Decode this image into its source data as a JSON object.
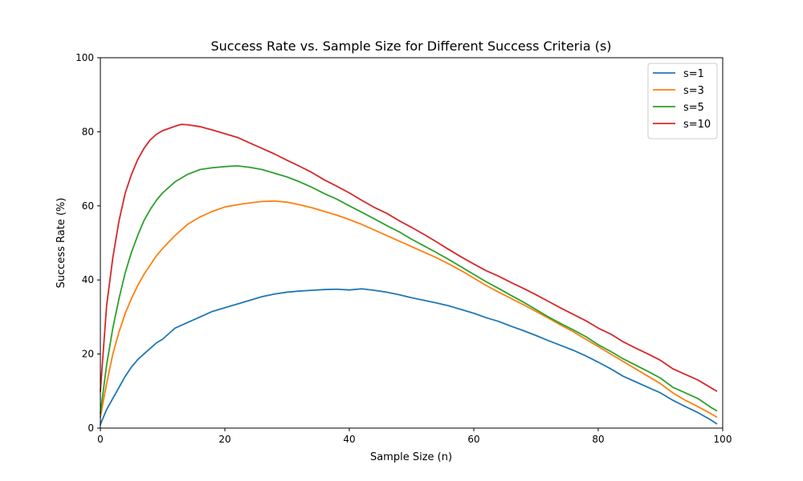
{
  "chart_data": {
    "type": "line",
    "title": "Success Rate vs. Sample Size for Different Success Criteria (s)",
    "xlabel": "Sample Size (n)",
    "ylabel": "Success Rate (%)",
    "xlim": [
      0,
      100
    ],
    "ylim": [
      0,
      100
    ],
    "xticks": [
      0,
      20,
      40,
      60,
      80,
      100
    ],
    "yticks": [
      0,
      20,
      40,
      60,
      80,
      100
    ],
    "grid": false,
    "legend_position": "top-right",
    "series": [
      {
        "name": "s=1",
        "color": "#1f77b4",
        "points": [
          [
            0,
            1
          ],
          [
            1,
            5
          ],
          [
            2,
            8
          ],
          [
            3,
            11
          ],
          [
            4,
            14
          ],
          [
            5,
            16.5
          ],
          [
            6,
            18.5
          ],
          [
            7,
            20
          ],
          [
            8,
            21.5
          ],
          [
            9,
            23
          ],
          [
            10,
            24
          ],
          [
            12,
            27
          ],
          [
            14,
            28.5
          ],
          [
            16,
            30
          ],
          [
            18,
            31.5
          ],
          [
            20,
            32.5
          ],
          [
            22,
            33.5
          ],
          [
            24,
            34.5
          ],
          [
            26,
            35.5
          ],
          [
            28,
            36.2
          ],
          [
            30,
            36.7
          ],
          [
            32,
            37
          ],
          [
            34,
            37.2
          ],
          [
            36,
            37.4
          ],
          [
            38,
            37.5
          ],
          [
            40,
            37.3
          ],
          [
            42,
            37.6
          ],
          [
            44,
            37.2
          ],
          [
            46,
            36.7
          ],
          [
            48,
            36
          ],
          [
            50,
            35.2
          ],
          [
            52,
            34.5
          ],
          [
            54,
            33.8
          ],
          [
            56,
            33
          ],
          [
            58,
            32
          ],
          [
            60,
            31
          ],
          [
            62,
            29.8
          ],
          [
            64,
            28.8
          ],
          [
            66,
            27.5
          ],
          [
            68,
            26.3
          ],
          [
            70,
            25
          ],
          [
            72,
            23.6
          ],
          [
            74,
            22.3
          ],
          [
            76,
            21
          ],
          [
            78,
            19.5
          ],
          [
            80,
            17.8
          ],
          [
            82,
            16
          ],
          [
            84,
            14
          ],
          [
            86,
            12.5
          ],
          [
            88,
            11
          ],
          [
            90,
            9.5
          ],
          [
            92,
            7.5
          ],
          [
            94,
            5.8
          ],
          [
            96,
            4.2
          ],
          [
            98,
            2.3
          ],
          [
            99,
            1.2
          ]
        ]
      },
      {
        "name": "s=3",
        "color": "#ff7f0e",
        "points": [
          [
            0,
            3
          ],
          [
            1,
            12
          ],
          [
            2,
            20
          ],
          [
            3,
            26
          ],
          [
            4,
            31
          ],
          [
            5,
            35
          ],
          [
            6,
            38.5
          ],
          [
            7,
            41.5
          ],
          [
            8,
            44
          ],
          [
            9,
            46.5
          ],
          [
            10,
            48.5
          ],
          [
            12,
            52
          ],
          [
            14,
            55
          ],
          [
            16,
            57
          ],
          [
            18,
            58.5
          ],
          [
            20,
            59.7
          ],
          [
            22,
            60.3
          ],
          [
            24,
            60.8
          ],
          [
            26,
            61.2
          ],
          [
            28,
            61.3
          ],
          [
            30,
            61
          ],
          [
            32,
            60.3
          ],
          [
            34,
            59.5
          ],
          [
            36,
            58.5
          ],
          [
            38,
            57.5
          ],
          [
            40,
            56.3
          ],
          [
            42,
            55
          ],
          [
            44,
            53.5
          ],
          [
            46,
            52
          ],
          [
            48,
            50.5
          ],
          [
            50,
            49
          ],
          [
            52,
            47.5
          ],
          [
            54,
            46
          ],
          [
            56,
            44.3
          ],
          [
            58,
            42.5
          ],
          [
            60,
            40.5
          ],
          [
            62,
            38.5
          ],
          [
            64,
            36.7
          ],
          [
            66,
            35
          ],
          [
            68,
            33.3
          ],
          [
            70,
            31.5
          ],
          [
            72,
            29.7
          ],
          [
            74,
            27.8
          ],
          [
            76,
            26
          ],
          [
            78,
            24
          ],
          [
            80,
            22
          ],
          [
            82,
            20
          ],
          [
            84,
            18
          ],
          [
            86,
            16
          ],
          [
            88,
            14
          ],
          [
            90,
            12
          ],
          [
            92,
            9.5
          ],
          [
            94,
            7.5
          ],
          [
            96,
            5.8
          ],
          [
            98,
            4
          ],
          [
            99,
            3
          ]
        ]
      },
      {
        "name": "s=5",
        "color": "#2ca02c",
        "points": [
          [
            0,
            4
          ],
          [
            1,
            17
          ],
          [
            2,
            27
          ],
          [
            3,
            35
          ],
          [
            4,
            42
          ],
          [
            5,
            47.5
          ],
          [
            6,
            52
          ],
          [
            7,
            56
          ],
          [
            8,
            59
          ],
          [
            9,
            61.5
          ],
          [
            10,
            63.5
          ],
          [
            12,
            66.5
          ],
          [
            14,
            68.5
          ],
          [
            16,
            69.8
          ],
          [
            18,
            70.3
          ],
          [
            20,
            70.6
          ],
          [
            22,
            70.8
          ],
          [
            24,
            70.4
          ],
          [
            26,
            69.8
          ],
          [
            28,
            68.8
          ],
          [
            30,
            67.8
          ],
          [
            32,
            66.5
          ],
          [
            34,
            65
          ],
          [
            36,
            63.3
          ],
          [
            38,
            61.8
          ],
          [
            40,
            60
          ],
          [
            42,
            58.3
          ],
          [
            44,
            56.5
          ],
          [
            46,
            54.7
          ],
          [
            48,
            53
          ],
          [
            50,
            51
          ],
          [
            52,
            49.2
          ],
          [
            54,
            47.4
          ],
          [
            56,
            45.5
          ],
          [
            58,
            43.5
          ],
          [
            60,
            41.5
          ],
          [
            62,
            39.5
          ],
          [
            64,
            37.7
          ],
          [
            66,
            35.8
          ],
          [
            68,
            34
          ],
          [
            70,
            32
          ],
          [
            72,
            30
          ],
          [
            74,
            28.2
          ],
          [
            76,
            26.5
          ],
          [
            78,
            24.7
          ],
          [
            80,
            22.5
          ],
          [
            82,
            20.7
          ],
          [
            84,
            18.7
          ],
          [
            86,
            17
          ],
          [
            88,
            15.3
          ],
          [
            90,
            13.5
          ],
          [
            92,
            11
          ],
          [
            94,
            9.5
          ],
          [
            96,
            8
          ],
          [
            98,
            5.7
          ],
          [
            99,
            4.7
          ]
        ]
      },
      {
        "name": "s=10",
        "color": "#d62728",
        "points": [
          [
            0,
            10
          ],
          [
            1,
            33
          ],
          [
            2,
            46
          ],
          [
            3,
            56
          ],
          [
            4,
            63.5
          ],
          [
            5,
            68.5
          ],
          [
            6,
            72.5
          ],
          [
            7,
            75.5
          ],
          [
            8,
            77.8
          ],
          [
            9,
            79.3
          ],
          [
            10,
            80.3
          ],
          [
            12,
            81.5
          ],
          [
            13,
            82
          ],
          [
            14,
            81.9
          ],
          [
            16,
            81.4
          ],
          [
            18,
            80.5
          ],
          [
            20,
            79.5
          ],
          [
            22,
            78.5
          ],
          [
            24,
            77
          ],
          [
            26,
            75.5
          ],
          [
            28,
            74
          ],
          [
            30,
            72.3
          ],
          [
            32,
            70.7
          ],
          [
            34,
            69
          ],
          [
            36,
            67
          ],
          [
            38,
            65.3
          ],
          [
            40,
            63.5
          ],
          [
            42,
            61.5
          ],
          [
            44,
            59.6
          ],
          [
            46,
            58
          ],
          [
            48,
            56
          ],
          [
            50,
            54.2
          ],
          [
            52,
            52.3
          ],
          [
            54,
            50.3
          ],
          [
            56,
            48.2
          ],
          [
            58,
            46.2
          ],
          [
            60,
            44.3
          ],
          [
            62,
            42.5
          ],
          [
            64,
            41
          ],
          [
            66,
            39.3
          ],
          [
            68,
            37.7
          ],
          [
            70,
            36
          ],
          [
            72,
            34.2
          ],
          [
            74,
            32.4
          ],
          [
            76,
            30.7
          ],
          [
            78,
            29
          ],
          [
            80,
            27
          ],
          [
            82,
            25.4
          ],
          [
            84,
            23.3
          ],
          [
            86,
            21.6
          ],
          [
            88,
            20
          ],
          [
            90,
            18.3
          ],
          [
            92,
            16
          ],
          [
            94,
            14.5
          ],
          [
            96,
            13
          ],
          [
            98,
            11
          ],
          [
            99,
            10
          ]
        ]
      }
    ]
  }
}
